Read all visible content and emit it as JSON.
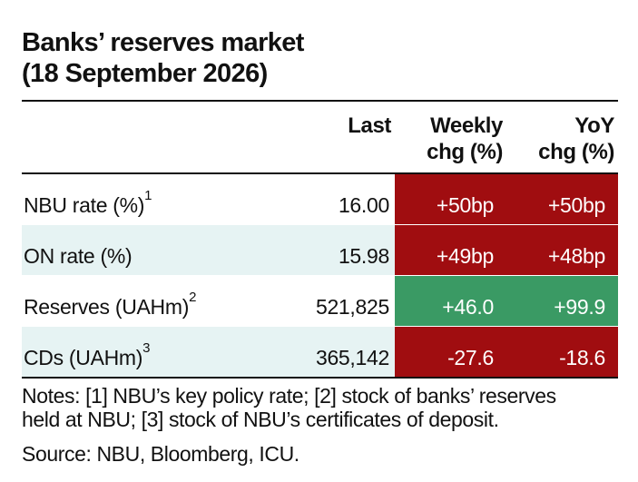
{
  "title": {
    "line1": "Banks’ reserves market",
    "line2": "(18 September 2026)"
  },
  "columns": {
    "last": "Last",
    "weekly_line1": "Weekly",
    "weekly_line2": "chg (%)",
    "yoy_line1": "YoY",
    "yoy_line2": "chg (%)"
  },
  "rows": [
    {
      "label": "NBU rate (%)",
      "note": "1",
      "last": "16.00",
      "weekly": "+50bp",
      "yoy": "+50bp",
      "weekly_color": "#a00d10",
      "yoy_color": "#a00d10"
    },
    {
      "label": "ON rate (%)",
      "note": "",
      "last": "15.98",
      "weekly": "+49bp",
      "yoy": "+48bp",
      "weekly_color": "#a00d10",
      "yoy_color": "#a00d10"
    },
    {
      "label": "Reserves (UAHm)",
      "note": "2",
      "last": "521,825",
      "weekly": "+46.0",
      "yoy": "+99.9",
      "weekly_color": "#3a9a64",
      "yoy_color": "#3a9a64"
    },
    {
      "label": "CDs (UAHm)",
      "note": "3",
      "last": "365,142",
      "weekly": "-27.6",
      "yoy": "-18.6",
      "weekly_color": "#a00d10",
      "yoy_color": "#a00d10"
    }
  ],
  "notes": {
    "line1": "Notes: [1] NBU’s key policy rate; [2] stock of banks’ reserves",
    "line2": "held at NBU; [3] stock of NBU’s certificates of deposit."
  },
  "source": "Source: NBU, Bloomberg, ICU.",
  "colors": {
    "negative_red": "#a00d10",
    "positive_green": "#3a9a64",
    "alt_row_bg": "#e6f3f3"
  }
}
